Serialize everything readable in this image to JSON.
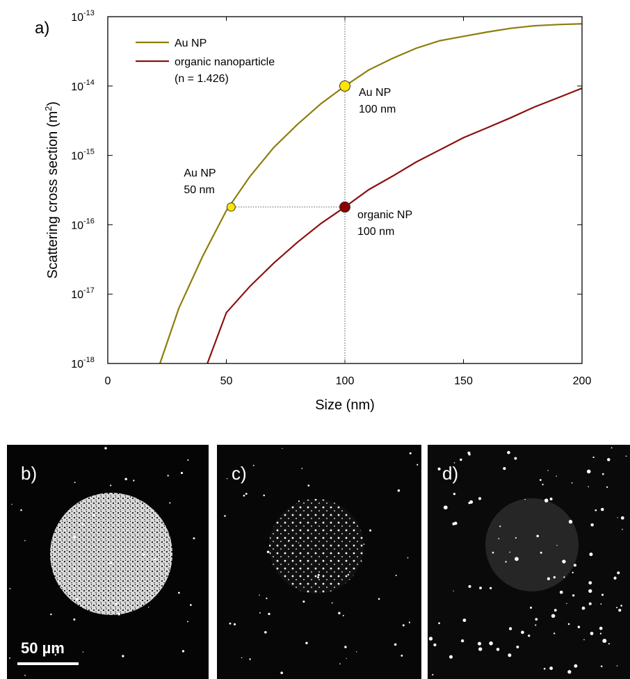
{
  "chart_data": {
    "type": "line",
    "panel_label": "a)",
    "x_label": "Size (nm)",
    "y_label": {
      "text": "Scattering cross section (m",
      "superscript": "2",
      "end": ")"
    },
    "log_y": true,
    "xlim": [
      0,
      200
    ],
    "xticks": [
      0,
      50,
      100,
      150,
      200
    ],
    "ylim": [
      1e-18,
      1e-13
    ],
    "yticks": [
      {
        "value": 1e-18,
        "label": "10",
        "superscript": "-18"
      },
      {
        "value": 1e-17,
        "label": "10",
        "superscript": "-17"
      },
      {
        "value": 1e-16,
        "label": "10",
        "superscript": "-16"
      },
      {
        "value": 1e-15,
        "label": "10",
        "superscript": "-15"
      },
      {
        "value": 1e-14,
        "label": "10",
        "superscript": "-14"
      },
      {
        "value": 1e-13,
        "label": "10",
        "superscript": "-13"
      }
    ],
    "legend": "upper left",
    "series": [
      {
        "name": "Au NP",
        "color": "#8c7d0a",
        "x": [
          22,
          30,
          40,
          50,
          60,
          70,
          80,
          90,
          100,
          110,
          120,
          130,
          140,
          150,
          160,
          170,
          180,
          190,
          200
        ],
        "values": [
          1e-18,
          6.3e-18,
          3.5e-17,
          1.6e-16,
          5e-16,
          1.3e-15,
          2.8e-15,
          5.6e-15,
          1e-14,
          1.7e-14,
          2.5e-14,
          3.5e-14,
          4.5e-14,
          5.2e-14,
          6e-14,
          6.8e-14,
          7.4e-14,
          7.7e-14,
          7.9e-14
        ]
      },
      {
        "name": "organic nanoparticle",
        "subtitle": "(n = 1.426)",
        "color": "#8b1010",
        "x": [
          42,
          50,
          60,
          70,
          80,
          90,
          100,
          110,
          120,
          130,
          140,
          150,
          160,
          170,
          180,
          190,
          200
        ],
        "values": [
          1e-18,
          5.4e-18,
          1.3e-17,
          2.8e-17,
          5.6e-17,
          1.05e-16,
          1.8e-16,
          3.2e-16,
          5e-16,
          8e-16,
          1.2e-15,
          1.8e-15,
          2.5e-15,
          3.5e-15,
          5e-15,
          6.8e-15,
          9.3e-15
        ]
      }
    ],
    "markers": [
      {
        "x": 52,
        "y": 1.8e-16,
        "color": "#ffe600",
        "labels": [
          "Au NP",
          "50 nm"
        ]
      },
      {
        "x": 100,
        "y": 1e-14,
        "color": "#ffe600",
        "labels": [
          "Au NP",
          "100 nm"
        ]
      },
      {
        "x": 100,
        "y": 1.8e-16,
        "color": "#8b0000",
        "labels": [
          "organic NP",
          "100 nm"
        ]
      }
    ]
  },
  "panels": [
    {
      "label": "b)"
    },
    {
      "label": "c)"
    },
    {
      "label": "d)"
    }
  ],
  "scale_bar": "50 µm"
}
